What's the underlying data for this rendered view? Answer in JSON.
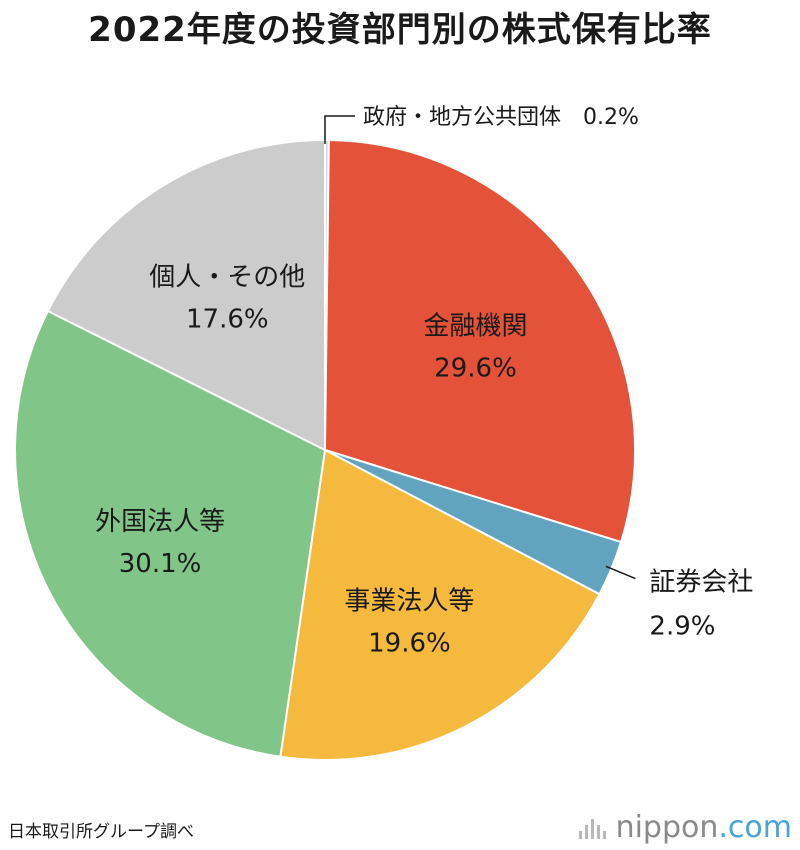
{
  "title": "2022年度の投資部門別の株式保有比率",
  "source": "日本取引所グループ調べ",
  "brand": {
    "name": "nippon",
    "suffix": ".com",
    "icon": "nippon-bars-icon"
  },
  "chart_data": {
    "type": "pie",
    "start": "12 o'clock",
    "direction": "clockwise",
    "slices": [
      {
        "label": "政府・地方公共団体",
        "value": 0.2,
        "value_label": "0.2%",
        "color": "#d9d9d9",
        "label_placement": "outside-top"
      },
      {
        "label": "金融機関",
        "value": 29.6,
        "value_label": "29.6%",
        "color": "#e4523a",
        "label_placement": "inside"
      },
      {
        "label": "証券会社",
        "value": 2.9,
        "value_label": "2.9%",
        "color": "#62a3bf",
        "label_placement": "outside-right"
      },
      {
        "label": "事業法人等",
        "value": 19.6,
        "value_label": "19.6%",
        "color": "#f5b93d",
        "label_placement": "inside"
      },
      {
        "label": "外国法人等",
        "value": 30.1,
        "value_label": "30.1%",
        "color": "#82c588",
        "label_placement": "inside"
      },
      {
        "label": "個人・その他",
        "value": 17.6,
        "value_label": "17.6%",
        "color": "#cccccc",
        "label_placement": "inside"
      }
    ]
  }
}
